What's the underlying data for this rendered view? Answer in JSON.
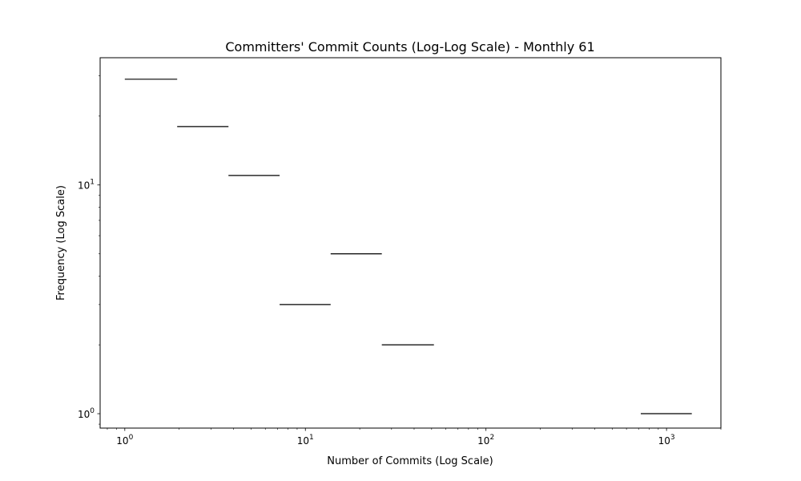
{
  "chart_data": {
    "type": "histogram",
    "title": "Committers' Commit Counts (Log-Log Scale) - Monthly 61",
    "xlabel": "Number of Commits (Log Scale)",
    "ylabel": "Frequency (Log Scale)",
    "x_scale": "log",
    "y_scale": "log",
    "xlim": [
      0.73,
      2000
    ],
    "ylim": [
      0.865,
      36
    ],
    "grid": false,
    "x_major_ticks": [
      {
        "value": 1,
        "base": "10",
        "exp": "0"
      },
      {
        "value": 10,
        "base": "10",
        "exp": "1"
      },
      {
        "value": 100,
        "base": "10",
        "exp": "2"
      },
      {
        "value": 1000,
        "base": "10",
        "exp": "3"
      }
    ],
    "y_major_ticks": [
      {
        "value": 1,
        "base": "10",
        "exp": "0"
      },
      {
        "value": 10,
        "base": "10",
        "exp": "1"
      }
    ],
    "bins": [
      {
        "x_start": 1.0,
        "x_end": 1.95,
        "frequency": 29
      },
      {
        "x_start": 1.95,
        "x_end": 3.75,
        "frequency": 18
      },
      {
        "x_start": 3.75,
        "x_end": 7.2,
        "frequency": 11
      },
      {
        "x_start": 7.2,
        "x_end": 13.8,
        "frequency": 3
      },
      {
        "x_start": 13.8,
        "x_end": 26.5,
        "frequency": 5
      },
      {
        "x_start": 26.5,
        "x_end": 51.5,
        "frequency": 2
      },
      {
        "x_start": 720,
        "x_end": 1380,
        "frequency": 1
      }
    ],
    "line_color": "#000000"
  }
}
